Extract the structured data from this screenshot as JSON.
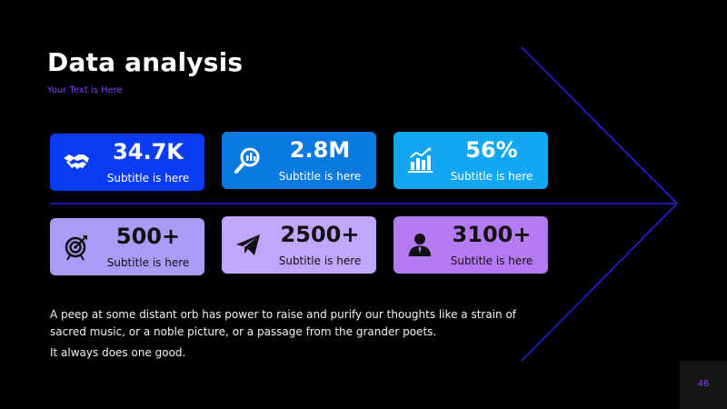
{
  "slide": {
    "title": "Data analysis",
    "subtitle": "Your Text is Here",
    "page_number": "46"
  },
  "colors": {
    "background": "#000000",
    "accent_line": "#2323e6",
    "subtitle": "#8a3cff"
  },
  "cards": [
    {
      "value": "34.7K",
      "subtitle": "Subtitle is here",
      "icon": "handshake-icon",
      "color": "#0b3cf5"
    },
    {
      "value": "2.8M",
      "subtitle": "Subtitle is here",
      "icon": "search-chart-icon",
      "color": "#0b7ae0"
    },
    {
      "value": "56%",
      "subtitle": "Subtitle is here",
      "icon": "bar-chart-icon",
      "color": "#12a7f2"
    },
    {
      "value": "500+",
      "subtitle": "Subtitle is here",
      "icon": "target-icon",
      "color": "#a89cf7"
    },
    {
      "value": "2500+",
      "subtitle": "Subtitle is here",
      "icon": "paper-plane-icon",
      "color": "#c0a7fb"
    },
    {
      "value": "3100+",
      "subtitle": "Subtitle is here",
      "icon": "user-icon",
      "color": "#b47af1"
    }
  ],
  "body": {
    "paragraph": "A peep at some distant  orb has power to raise and purify our thoughts like a strain of sacred music, or a noble picture, or a passage from the grander poets.",
    "line2": "It always does one good."
  }
}
